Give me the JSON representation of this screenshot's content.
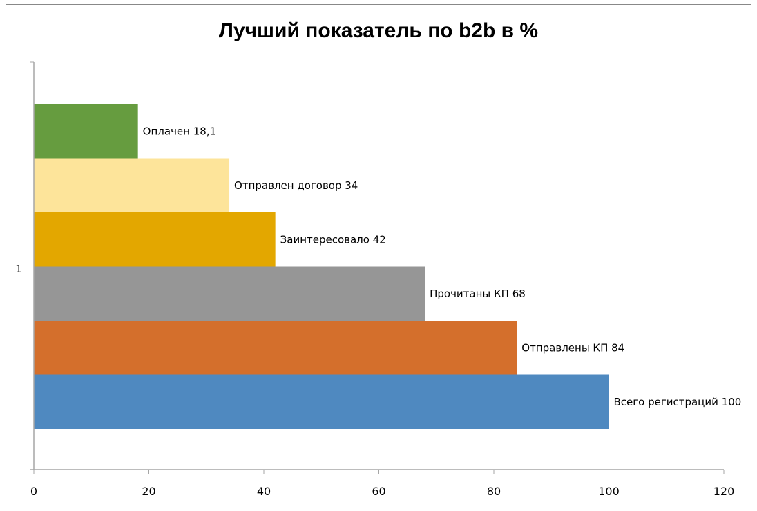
{
  "chart_data": {
    "type": "bar",
    "orientation": "horizontal",
    "title": "Лучший показатель по b2b в %",
    "categories": [
      "1"
    ],
    "xlim": [
      0,
      120
    ],
    "xticks": [
      0,
      20,
      40,
      60,
      80,
      100,
      120
    ],
    "grid": false,
    "legend": "none",
    "series": [
      {
        "label": "Всего регистраций 100",
        "value": 100,
        "color": "#4f89c0"
      },
      {
        "label": "Отправлены КП 84",
        "value": 84,
        "color": "#d46f2c"
      },
      {
        "label": "Прочитаны КП 68",
        "value": 68,
        "color": "#969696"
      },
      {
        "label": "Заинтересовало 42",
        "value": 42,
        "color": "#e3a700"
      },
      {
        "label": "Отправлен договор 34",
        "value": 34,
        "color": "#fde49a"
      },
      {
        "label": "Оплачен 18,1",
        "value": 18.1,
        "color": "#669c3f"
      }
    ]
  }
}
